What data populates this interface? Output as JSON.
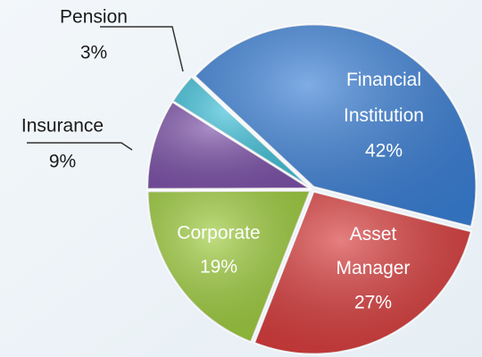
{
  "chart_data": {
    "type": "pie",
    "categories": [
      "Financial Institution",
      "Asset Manager",
      "Corporate",
      "Insurance",
      "Pension"
    ],
    "values": [
      42,
      27,
      19,
      9,
      3
    ],
    "value_labels": [
      "42%",
      "27%",
      "19%",
      "9%",
      "3%"
    ],
    "colors": [
      "#3a7fd5",
      "#d83b3b",
      "#9dcb3c",
      "#7d52a9",
      "#3fc1d9"
    ]
  }
}
